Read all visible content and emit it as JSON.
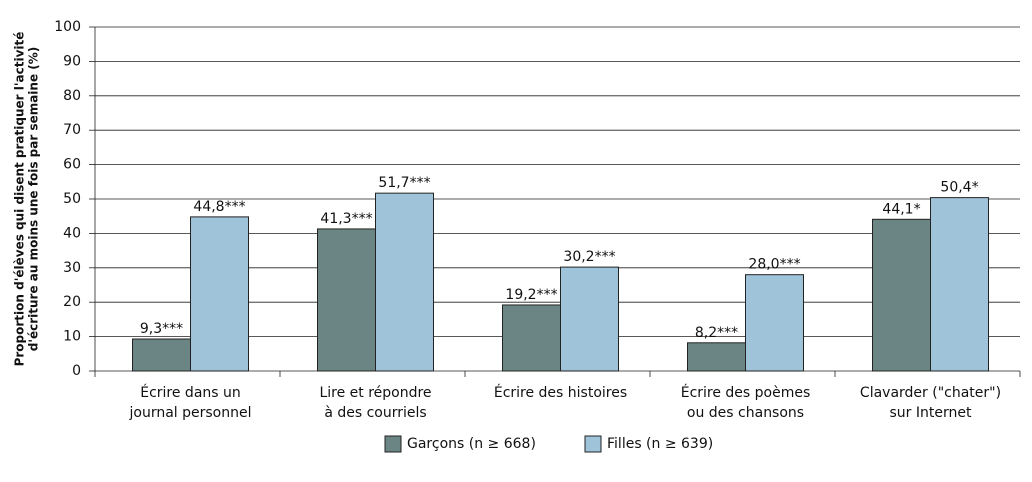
{
  "chart_data": {
    "type": "bar",
    "y_label": [
      "Proportion d'élèves qui disent pratiquer l'activité",
      "d'écriture au moins une fois par semaine (%)"
    ],
    "categories": [
      [
        "Écrire dans un",
        "journal personnel"
      ],
      [
        "Lire et répondre",
        "à des courriels"
      ],
      [
        "Écrire des histoires"
      ],
      [
        "Écrire des poèmes",
        "ou des chansons"
      ],
      [
        "Clavarder (\"chater\")",
        "sur Internet"
      ]
    ],
    "series": [
      {
        "name": "Garçons (n ≥ 668)",
        "color": "#6b8585",
        "values": [
          9.3,
          41.3,
          19.2,
          8.2,
          44.1
        ],
        "value_labels": [
          "9,3***",
          "41,3***",
          "19,2***",
          "8,2***",
          "44,1*"
        ]
      },
      {
        "name": "Filles (n ≥ 639)",
        "color": "#9fc4d9",
        "values": [
          44.8,
          51.7,
          30.2,
          28.0,
          50.4
        ],
        "value_labels": [
          "44,8***",
          "51,7***",
          "30,2***",
          "28,0***",
          "50,4*"
        ]
      }
    ],
    "ylim": [
      0,
      100
    ],
    "yticks": [
      0,
      10,
      20,
      30,
      40,
      50,
      60,
      70,
      80,
      90,
      100
    ],
    "grid": true,
    "legend": "bottom"
  }
}
